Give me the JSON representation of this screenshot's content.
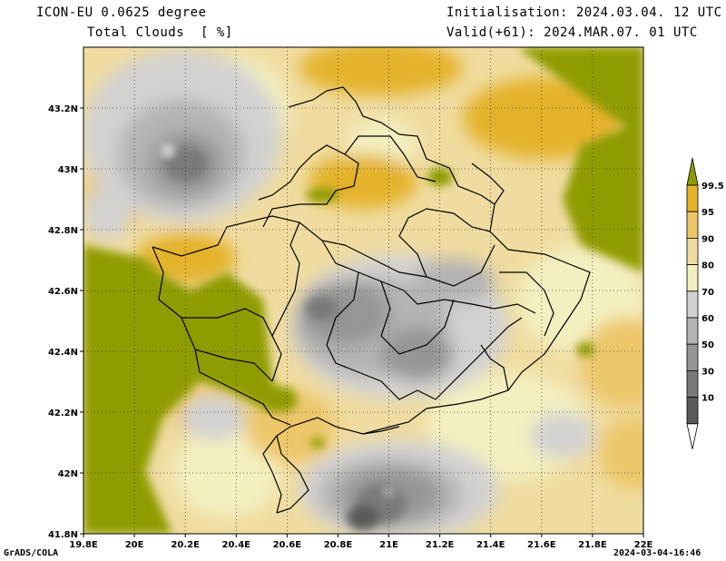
{
  "header": {
    "model": "ICON-EU 0.0625 degree",
    "variable": "Total Clouds  [ %]",
    "init": "Initialisation: 2024.03.04. 12 UTC",
    "valid": "Valid(+61): 2024.MAR.07. 01 UTC"
  },
  "footer": {
    "left": "GrADS/COLA",
    "right": "2024-03-04-16:46"
  },
  "axes": {
    "lat_labels": [
      "43.2N",
      "43N",
      "42.8N",
      "42.6N",
      "42.4N",
      "42.2N",
      "42N",
      "41.8N"
    ],
    "lon_labels": [
      "19.8E",
      "20E",
      "20.2E",
      "20.4E",
      "20.6E",
      "20.8E",
      "21E",
      "21.2E",
      "21.4E",
      "21.6E",
      "21.8E",
      "22E"
    ]
  },
  "colorbar": {
    "labels": [
      "99.5",
      "95",
      "90",
      "80",
      "70",
      "60",
      "50",
      "30",
      "10"
    ],
    "colors": [
      "#8f9c00",
      "#e4b22a",
      "#edc76a",
      "#f0dca0",
      "#f3efc0",
      "#d2d2d2",
      "#b4b4b4",
      "#969696",
      "#7a7a7a",
      "#5a5a5a",
      "#ffffff"
    ]
  }
}
